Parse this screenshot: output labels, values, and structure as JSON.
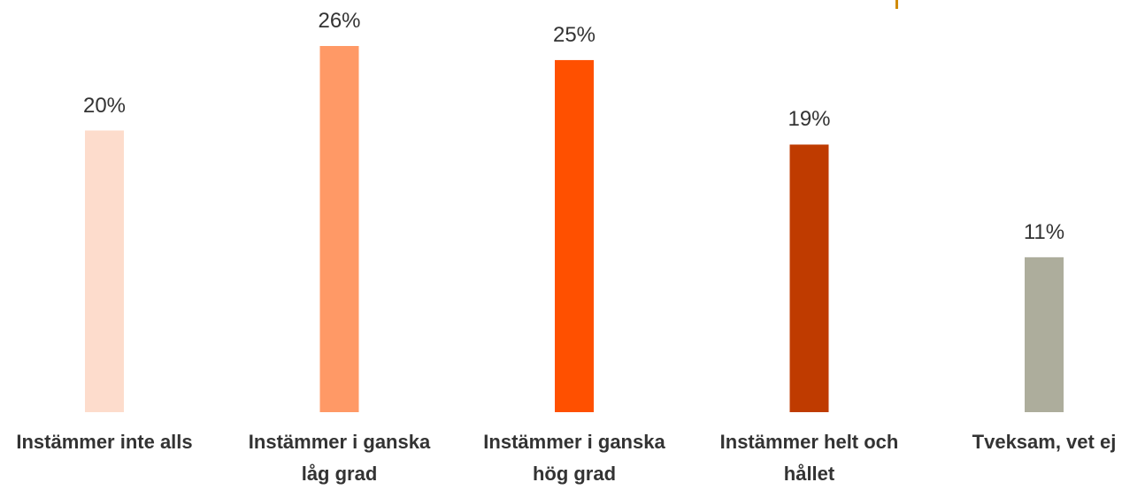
{
  "chart_data": {
    "type": "bar",
    "categories": [
      "Instämmer inte alls",
      "Instämmer i ganska låg grad",
      "Instämmer i ganska hög grad",
      "Instämmer helt och hållet",
      "Tveksam, vet ej"
    ],
    "values": [
      20,
      26,
      25,
      19,
      11
    ],
    "value_labels": [
      "20%",
      "26%",
      "25%",
      "19%",
      "11%"
    ],
    "colors": [
      "#fddccc",
      "#ff9966",
      "#ff5000",
      "#bf3b00",
      "#adad9c"
    ]
  }
}
